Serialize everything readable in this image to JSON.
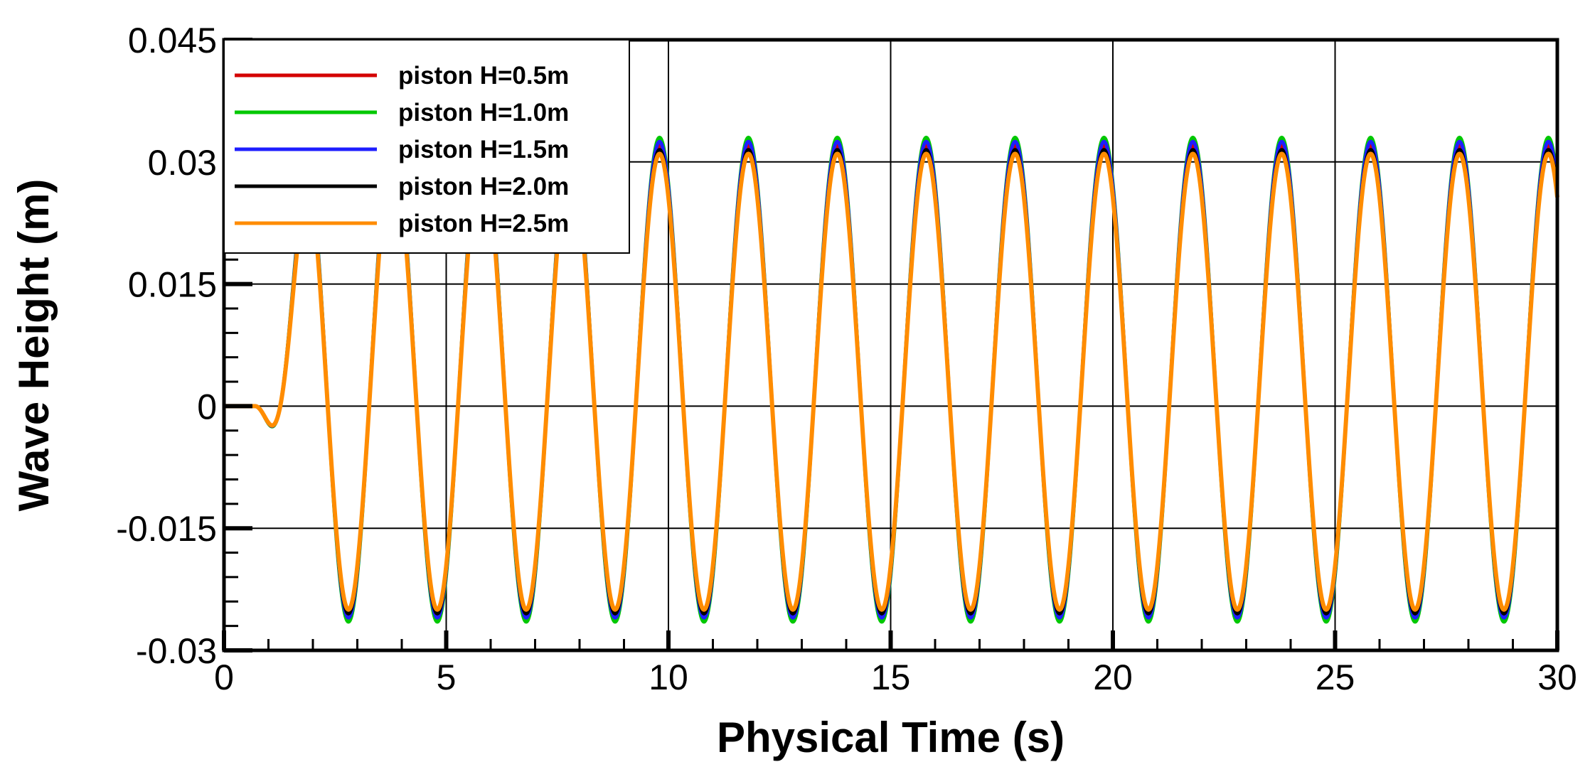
{
  "chart_data": {
    "type": "line",
    "title": "",
    "xlabel": "Physical Time (s)",
    "ylabel": "Wave Height (m)",
    "xlim": [
      0,
      30
    ],
    "ylim": [
      -0.03,
      0.045
    ],
    "x_ticks": [
      0,
      5,
      10,
      15,
      20,
      25,
      30
    ],
    "x_tick_labels": [
      "0",
      "5",
      "10",
      "15",
      "20",
      "25",
      "30"
    ],
    "y_ticks": [
      -0.03,
      -0.015,
      0,
      0.015,
      0.03,
      0.045
    ],
    "y_tick_labels": [
      "-0.03",
      "-0.015",
      "0",
      "0.015",
      "0.03",
      "0.045"
    ],
    "grid": true,
    "legend_position": "top-left",
    "wave": {
      "start_time": 0.7,
      "period": 2.0,
      "ramp_time": 1.5,
      "first_crest_time": 1.8,
      "mean_level": 0.003
    },
    "series": [
      {
        "name": "piston H=0.5m",
        "color": "#d40000",
        "crest": 0.032,
        "trough": -0.0255
      },
      {
        "name": "piston H=1.0m",
        "color": "#00c800",
        "crest": 0.033,
        "trough": -0.0265
      },
      {
        "name": "piston H=1.5m",
        "color": "#1e1eff",
        "crest": 0.0325,
        "trough": -0.026
      },
      {
        "name": "piston H=2.0m",
        "color": "#000000",
        "crest": 0.0315,
        "trough": -0.0255
      },
      {
        "name": "piston H=2.5m",
        "color": "#ff8c00",
        "crest": 0.031,
        "trough": -0.025
      }
    ]
  }
}
